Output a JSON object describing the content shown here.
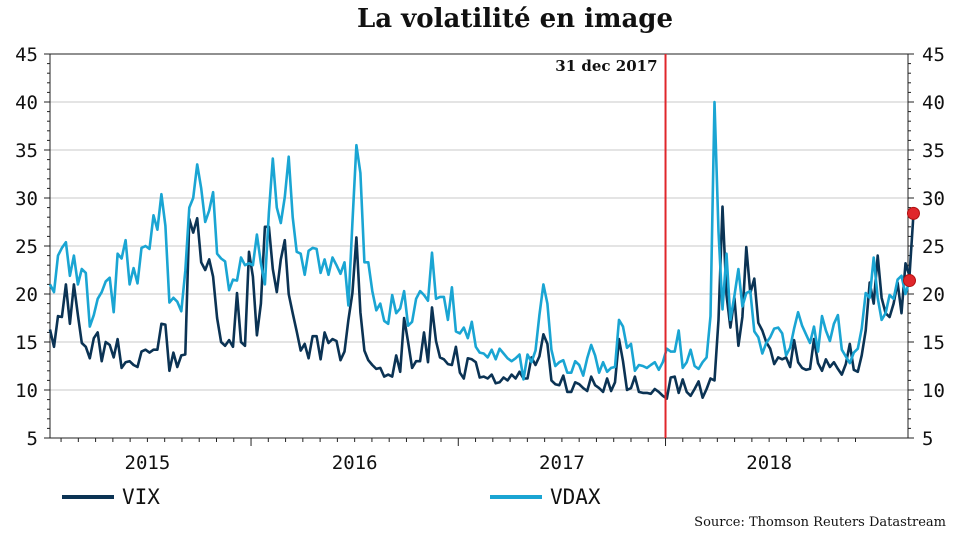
{
  "chart_data": {
    "type": "line",
    "title": "La volatilité en image",
    "source": "Source: Thomson Reuters Datastream",
    "annotation": {
      "label": "31 dec 2017",
      "x": 2017.5,
      "color": "#e0262b"
    },
    "ylim": [
      5,
      45
    ],
    "yticks": [
      5,
      10,
      15,
      20,
      25,
      30,
      35,
      40,
      45
    ],
    "xlim": [
      2014.53,
      2018.67
    ],
    "xticks": [
      {
        "label": "2015",
        "x": 2015.0
      },
      {
        "label": "2016",
        "x": 2016.0
      },
      {
        "label": "2017",
        "x": 2017.0
      },
      {
        "label": "2018",
        "x": 2018.0
      }
    ],
    "grid": true,
    "legend_position": "bottom",
    "x_start": 2014.53,
    "x_step": 0.0192,
    "series": [
      {
        "name": "VIX",
        "color": "#0b3354",
        "end_marker": true,
        "values": [
          16.3,
          14.5,
          17.7,
          17.6,
          21.0,
          16.9,
          21.0,
          17.8,
          14.9,
          14.5,
          13.3,
          15.4,
          16.0,
          13.0,
          15.0,
          14.7,
          13.4,
          15.3,
          12.3,
          12.9,
          13.0,
          12.6,
          12.4,
          14.0,
          14.2,
          13.9,
          14.2,
          14.2,
          16.9,
          16.8,
          12.0,
          13.9,
          12.4,
          13.6,
          13.7,
          27.8,
          26.4,
          27.9,
          23.3,
          22.5,
          23.6,
          21.8,
          17.5,
          15.0,
          14.6,
          15.2,
          14.5,
          20.1,
          15.0,
          14.6,
          24.4,
          21.8,
          15.7,
          19.0,
          27.0,
          27.0,
          22.6,
          20.2,
          23.6,
          25.6,
          20.0,
          18.0,
          16.1,
          14.1,
          14.8,
          13.3,
          15.6,
          15.6,
          13.2,
          16.0,
          14.9,
          15.3,
          15.1,
          13.1,
          14.0,
          17.3,
          20.1,
          25.9,
          18.1,
          14.1,
          13.1,
          12.6,
          12.2,
          12.3,
          11.4,
          11.6,
          11.4,
          13.6,
          11.9,
          17.5,
          15.0,
          12.3,
          13.0,
          13.0,
          16.0,
          12.9,
          18.6,
          15.1,
          13.4,
          13.2,
          12.7,
          12.6,
          14.5,
          11.8,
          11.2,
          13.3,
          13.2,
          12.9,
          11.3,
          11.4,
          11.2,
          11.6,
          10.7,
          10.8,
          11.3,
          11.0,
          11.6,
          11.2,
          11.9,
          11.2,
          11.2,
          13.4,
          12.6,
          13.5,
          15.8,
          14.8,
          11.0,
          10.6,
          10.5,
          11.5,
          9.8,
          9.8,
          10.8,
          10.6,
          10.2,
          9.9,
          11.4,
          10.5,
          10.2,
          9.8,
          11.2,
          9.9,
          10.8,
          15.3,
          13.0,
          10.0,
          10.2,
          11.4,
          9.8,
          9.7,
          9.7,
          9.6,
          10.1,
          9.8,
          9.4,
          9.1,
          11.3,
          11.4,
          9.7,
          11.1,
          9.8,
          9.4,
          10.1,
          10.9,
          9.2,
          10.1,
          11.2,
          11.0,
          17.3,
          29.1,
          19.9,
          16.5,
          19.6,
          14.6,
          17.6,
          24.9,
          20.1,
          21.6,
          17.0,
          16.2,
          15.0,
          14.3,
          12.7,
          13.4,
          13.2,
          13.4,
          12.4,
          15.2,
          12.9,
          12.3,
          12.1,
          12.2,
          15.3,
          12.8,
          12.0,
          13.2,
          12.4,
          12.9,
          12.2,
          11.6,
          12.7,
          14.8,
          12.1,
          11.9,
          13.6,
          16.2,
          21.2,
          19.0,
          24.0,
          19.6,
          18.0,
          17.6,
          19.0,
          21.2,
          18.0,
          23.2,
          21.9,
          28.4
        ]
      },
      {
        "name": "VDAX",
        "color": "#1aa5d3",
        "end_marker": true,
        "values": [
          21.0,
          20.2,
          24.0,
          24.8,
          25.4,
          21.9,
          24.0,
          21.0,
          22.6,
          22.2,
          16.6,
          17.8,
          19.5,
          20.2,
          21.3,
          21.7,
          18.1,
          24.2,
          23.7,
          25.6,
          21.0,
          22.7,
          21.1,
          24.8,
          25.0,
          24.7,
          28.2,
          26.7,
          30.4,
          27.1,
          19.1,
          19.6,
          19.2,
          18.2,
          22.4,
          29.0,
          30.0,
          33.5,
          31.0,
          27.5,
          28.7,
          30.6,
          24.2,
          23.7,
          23.4,
          20.4,
          21.5,
          21.4,
          23.8,
          23.0,
          23.2,
          23.0,
          26.2,
          23.2,
          21.0,
          28.5,
          34.1,
          29.0,
          27.4,
          30.1,
          34.3,
          28.0,
          24.4,
          24.2,
          22.0,
          24.5,
          24.8,
          24.7,
          22.2,
          23.6,
          22.0,
          23.8,
          23.0,
          22.1,
          23.3,
          18.8,
          27.4,
          35.5,
          32.6,
          23.3,
          23.3,
          20.3,
          18.3,
          19.0,
          17.2,
          16.9,
          19.9,
          18.0,
          18.5,
          20.3,
          16.7,
          17.1,
          19.5,
          20.3,
          19.9,
          19.3,
          24.3,
          19.5,
          19.7,
          19.7,
          17.3,
          20.7,
          16.1,
          15.9,
          16.5,
          15.4,
          17.1,
          14.5,
          13.9,
          13.8,
          13.4,
          14.2,
          13.2,
          14.3,
          13.8,
          13.3,
          13.0,
          13.3,
          13.7,
          11.1,
          13.7,
          12.9,
          14.1,
          17.8,
          21.0,
          19.0,
          14.2,
          12.5,
          12.9,
          13.1,
          11.8,
          11.8,
          13.0,
          12.6,
          11.5,
          13.3,
          14.7,
          13.6,
          11.8,
          12.9,
          11.9,
          12.3,
          12.4,
          17.3,
          16.6,
          14.4,
          14.8,
          12.0,
          12.6,
          12.5,
          12.3,
          12.6,
          12.9,
          12.1,
          12.9,
          14.3,
          14.0,
          14.0,
          16.2,
          12.3,
          12.9,
          14.2,
          12.5,
          12.2,
          12.9,
          13.4,
          17.7,
          40.0,
          26.5,
          18.4,
          24.2,
          17.3,
          19.8,
          22.6,
          18.7,
          20.1,
          20.3,
          16.1,
          15.5,
          13.8,
          14.9,
          15.5,
          16.4,
          16.5,
          15.9,
          13.6,
          14.4,
          16.4,
          18.1,
          16.7,
          15.8,
          14.9,
          16.6,
          14.0,
          17.7,
          16.2,
          15.1,
          16.9,
          17.8,
          14.2,
          13.5,
          12.8,
          13.9,
          14.3,
          16.4,
          20.1,
          19.6,
          23.8,
          19.6,
          17.3,
          18.0,
          19.9,
          19.5,
          21.5,
          21.9,
          20.0,
          21.4
        ]
      }
    ]
  }
}
